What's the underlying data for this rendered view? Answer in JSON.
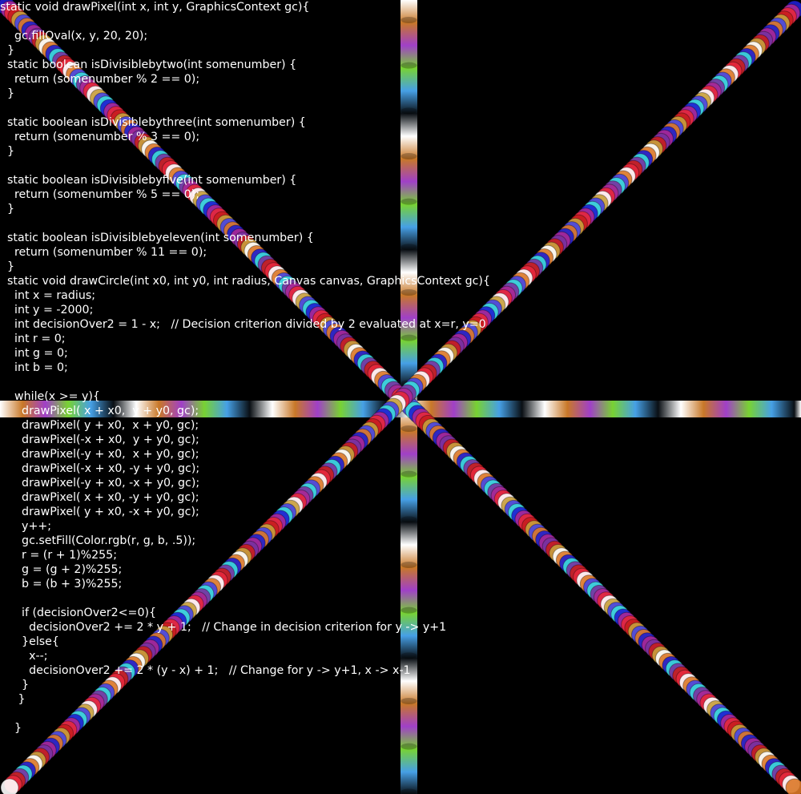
{
  "background_color": "#000000",
  "text_color": "#ffffff",
  "band_colors": [
    "#ffffff",
    "#c87828",
    "#a040c8",
    "#78d232",
    "#46a0e6",
    "#0a0f14"
  ],
  "dot_colors": [
    "#1e1ed2",
    "#c81e1e",
    "#dc7828",
    "#7832a0",
    "#ffffff",
    "#3cdcdc",
    "#e6283c",
    "#4646e6",
    "#aa2896",
    "#c8a03c"
  ],
  "code_lines": [
    "static void drawPixel(int x, int y, GraphicsContext gc){",
    "",
    "    gc.fillOval(x, y, 20, 20);",
    "  }",
    "  static boolean isDivisiblebytwo(int somenumber) {",
    "    return (somenumber % 2 == 0);",
    "  }",
    "",
    "  static boolean isDivisiblebythree(int somenumber) {",
    "    return (somenumber % 3 == 0);",
    "  }",
    "",
    "  static boolean isDivisiblebyfive(int somenumber) {",
    "    return (somenumber % 5 == 0);",
    "  }",
    "",
    "  static boolean isDivisiblebyeleven(int somenumber) {",
    "    return (somenumber % 11 == 0);",
    "  }",
    "  static void drawCircle(int x0, int y0, int radius, Canvas canvas, GraphicsContext gc){",
    "    int x = radius;",
    "    int y = -2000;",
    "    int decisionOver2 = 1 - x;   // Decision criterion divided by 2 evaluated at x=r, y=0",
    "    int r = 0;",
    "    int g = 0;",
    "    int b = 0;",
    "",
    "    while(x >= y){",
    "      drawPixel( x + x0,  y + y0, gc);",
    "      drawPixel( y + x0,  x + y0, gc);",
    "      drawPixel(-x + x0,  y + y0, gc);",
    "      drawPixel(-y + x0,  x + y0, gc);",
    "      drawPixel(-x + x0, -y + y0, gc);",
    "      drawPixel(-y + x0, -x + y0, gc);",
    "      drawPixel( x + x0, -y + y0, gc);",
    "      drawPixel( y + x0, -x + y0, gc);",
    "      y++;",
    "      gc.setFill(Color.rgb(r, g, b, .5));",
    "      r = (r + 1)%255;",
    "      g = (g + 2)%255;",
    "      b = (b + 3)%255;",
    "",
    "      if (decisionOver2<=0){",
    "        decisionOver2 += 2 * y + 1;   // Change in decision criterion for y -> y+1",
    "      }else{",
    "        x--;",
    "        decisionOver2 += 2 * (y - x) + 1;   // Change for y -> y+1, x -> x-1",
    "      }",
    "     }",
    "",
    "    }"
  ]
}
